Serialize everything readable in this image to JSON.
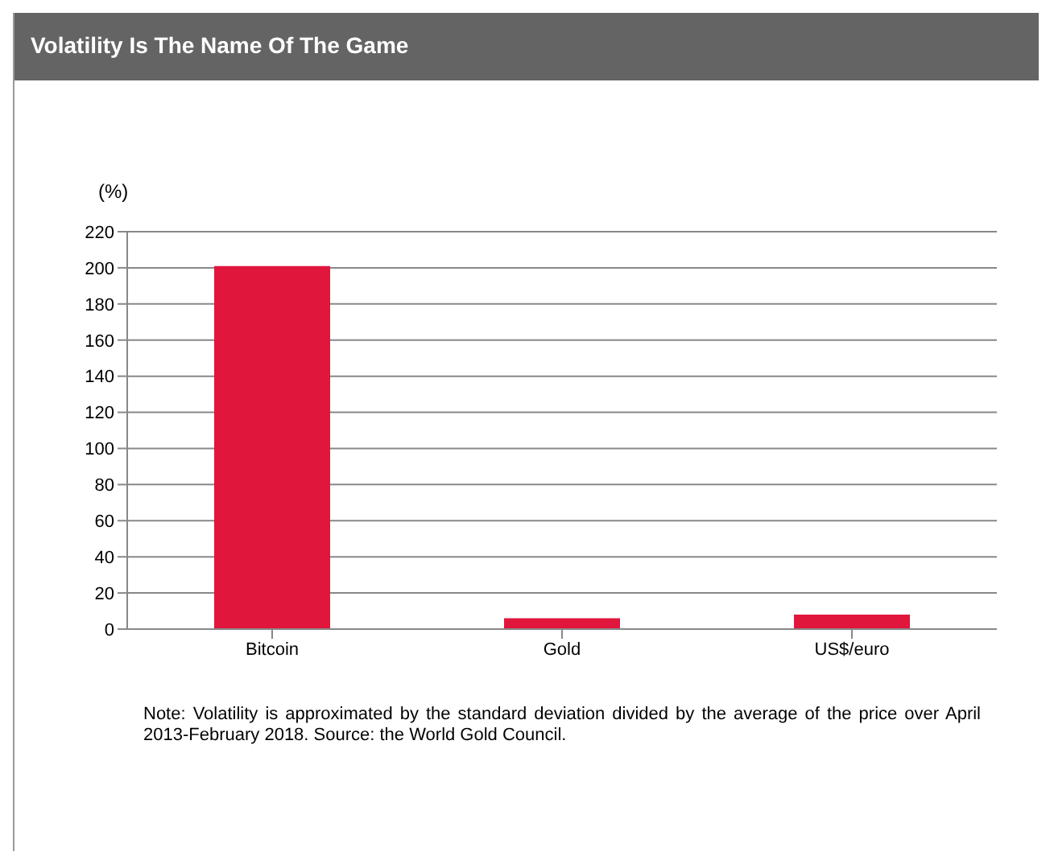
{
  "chart_data": {
    "type": "bar",
    "title": "Volatility Is The Name Of The Game",
    "ylabel": "(%)",
    "categories": [
      "Bitcoin",
      "Gold",
      "US$/euro"
    ],
    "values": [
      201,
      6,
      8
    ],
    "color": "#e0163c",
    "ylim": [
      0,
      220
    ],
    "yticks": [
      0,
      20,
      40,
      60,
      80,
      100,
      120,
      140,
      160,
      180,
      200,
      220
    ],
    "grid": "y",
    "legend": false,
    "annotations": [
      "Note: Volatility is approximated by the standard deviation divided by the average of the price over April 2013-February 2018. Source: the World Gold Council."
    ]
  }
}
